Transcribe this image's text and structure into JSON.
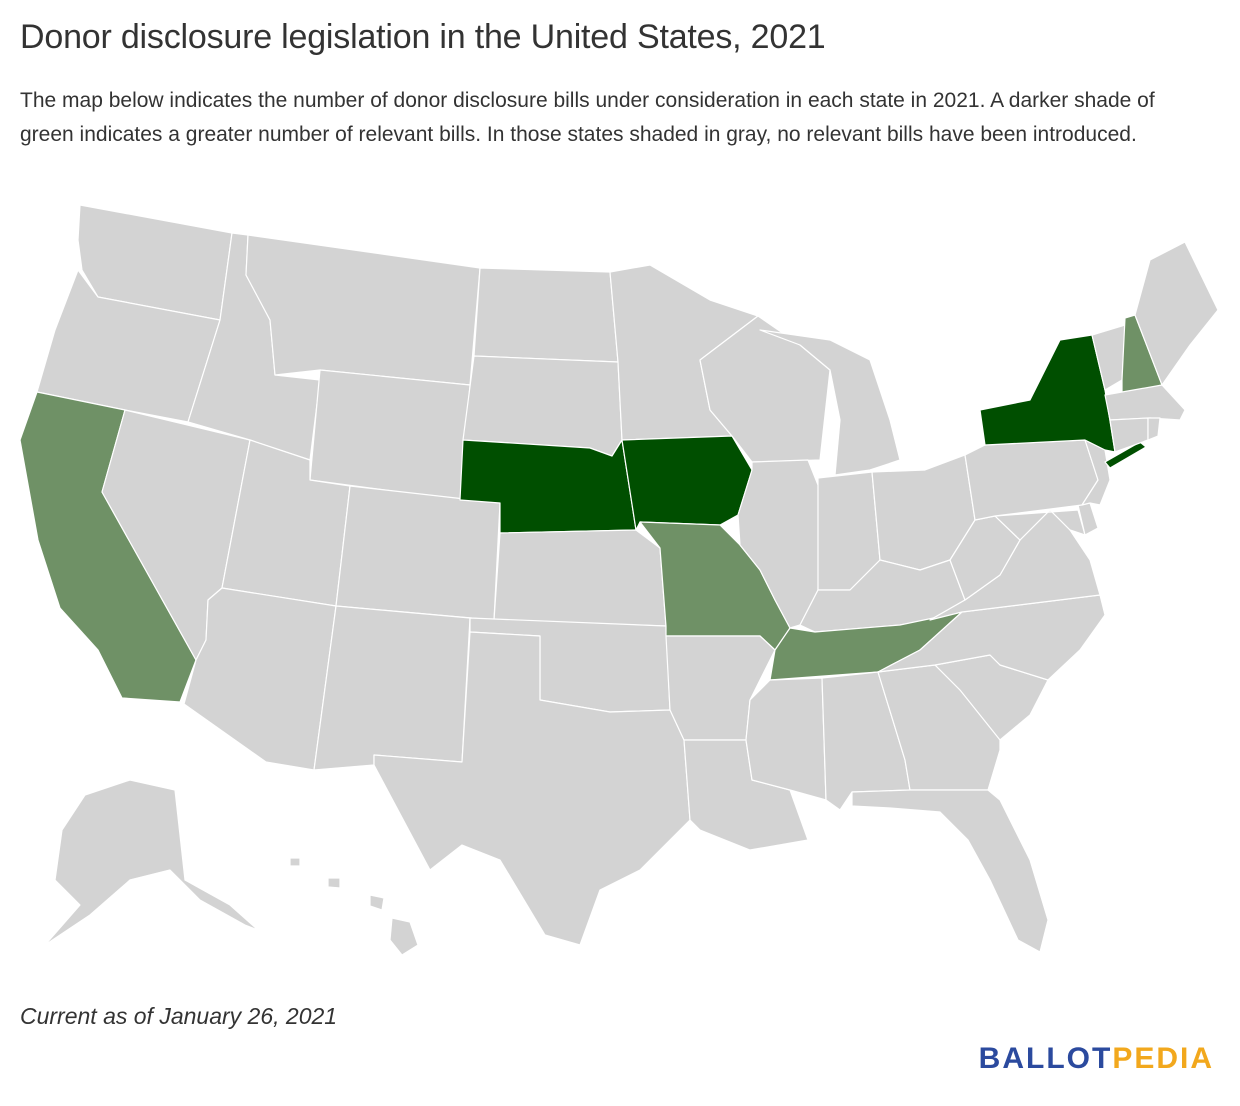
{
  "title": "Donor disclosure legislation in the United States, 2021",
  "description": "The map below indicates the number of donor disclosure bills under consideration in each state in 2021. A darker shade of green indicates a greater number of relevant bills. In those states shaded in gray, no relevant bills have been introduced.",
  "footnote": "Current as of January 26, 2021",
  "logo": {
    "part1": "BALLOT",
    "part2": "PEDIA",
    "color1": "#2b4a9e",
    "color2": "#f2a81d"
  },
  "colors": {
    "none": "#d3d3d3",
    "light": "#6f9166",
    "dark": "#004f00",
    "border": "#ffffff"
  },
  "map_data": {
    "type": "choropleth",
    "region": "United States",
    "levels": [
      "none",
      "light",
      "dark"
    ],
    "states": {
      "WA": "none",
      "OR": "none",
      "CA": "light",
      "NV": "none",
      "ID": "none",
      "MT": "none",
      "WY": "none",
      "UT": "none",
      "AZ": "none",
      "CO": "none",
      "NM": "none",
      "ND": "none",
      "SD": "none",
      "NE": "dark",
      "KS": "none",
      "OK": "none",
      "TX": "none",
      "MN": "none",
      "IA": "dark",
      "MO": "light",
      "AR": "none",
      "LA": "none",
      "WI": "none",
      "IL": "none",
      "MI": "none",
      "IN": "none",
      "OH": "none",
      "KY": "none",
      "TN": "light",
      "MS": "none",
      "AL": "none",
      "GA": "none",
      "FL": "none",
      "SC": "none",
      "NC": "none",
      "VA": "none",
      "WV": "none",
      "PA": "none",
      "NY": "dark",
      "VT": "none",
      "NH": "light",
      "ME": "none",
      "MA": "none",
      "RI": "none",
      "CT": "none",
      "NJ": "none",
      "DE": "none",
      "MD": "none",
      "AK": "none",
      "HI": "none"
    }
  }
}
